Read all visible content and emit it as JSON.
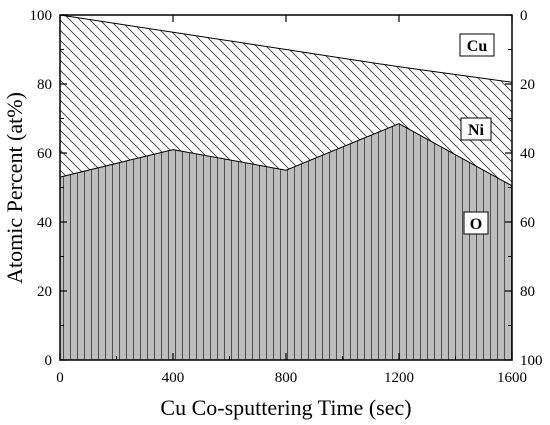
{
  "chart_data": {
    "type": "area",
    "stacked": true,
    "title": "",
    "xlabel": "Cu  Co-sputtering Time (sec)",
    "ylabel": "Atomic Percent (at%)",
    "xlim": [
      0,
      1600
    ],
    "ylim": [
      0,
      100
    ],
    "y2lim": [
      100,
      0
    ],
    "x_ticks": [
      "0",
      "400",
      "800",
      "1200",
      "1600"
    ],
    "y_ticks": [
      "0",
      "20",
      "40",
      "60",
      "80",
      "100"
    ],
    "y2_ticks": [
      "100",
      "80",
      "60",
      "40",
      "20",
      "0"
    ],
    "grid": false,
    "x": [
      0,
      400,
      800,
      1200,
      1600
    ],
    "series": [
      {
        "name": "O",
        "values": [
          53,
          61,
          55,
          68.5,
          50.5
        ],
        "pattern": "vertical-lines",
        "fill": "#bdbdbd"
      },
      {
        "name": "Ni",
        "values": [
          47,
          34,
          35,
          16.5,
          30
        ],
        "pattern": "diagonal-lines",
        "fill": "#ffffff"
      },
      {
        "name": "Cu",
        "values": [
          0,
          5,
          10,
          15,
          19.5
        ],
        "pattern": "none",
        "fill": "#ffffff"
      }
    ],
    "boundaries": {
      "o_top": [
        53,
        61,
        55,
        68.5,
        50.5
      ],
      "ni_top": [
        100,
        95,
        90,
        85,
        80.5
      ]
    }
  }
}
